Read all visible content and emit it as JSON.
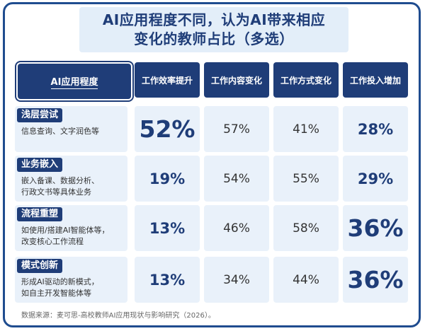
{
  "title": {
    "line1": "AI应用程度不同，认为AI带来相应",
    "line2": "变化的教师占比（多选）"
  },
  "chart_data": {
    "type": "table",
    "header_row": "AI应用程度",
    "columns": [
      "工作效率提升",
      "工作内容变化",
      "工作方式变化",
      "工作投入增加"
    ],
    "rows": [
      {
        "tag": "浅层尝试",
        "desc": [
          "信息查询、文字润色等"
        ],
        "values": [
          "52%",
          "57%",
          "41%",
          "28%"
        ]
      },
      {
        "tag": "业务嵌入",
        "desc": [
          "嵌入备课、数据分析、",
          "行政文书等具体业务"
        ],
        "values": [
          "19%",
          "54%",
          "55%",
          "29%"
        ]
      },
      {
        "tag": "流程重塑",
        "desc": [
          "如使用/搭建AI智能体等，",
          "改变核心工作流程"
        ],
        "values": [
          "13%",
          "46%",
          "58%",
          "36%"
        ]
      },
      {
        "tag": "模式创新",
        "desc": [
          "形成AI驱动的新模式，",
          "如自主开发智能体等"
        ],
        "values": [
          "13%",
          "34%",
          "44%",
          "36%"
        ]
      }
    ]
  },
  "source": "数据来源：麦可思-高校教师AI应用现状与影响研究（2026）。"
}
